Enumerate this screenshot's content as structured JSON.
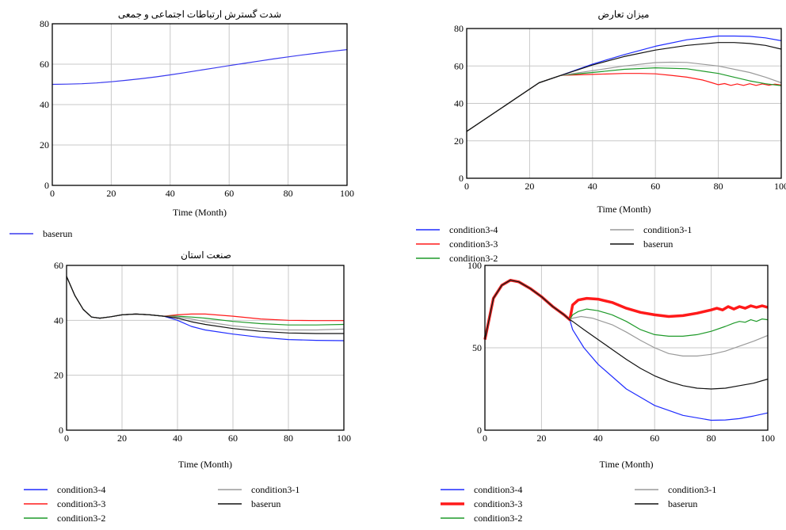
{
  "colors": {
    "condition3-4": "#1f2cff",
    "condition3-3": "#ff1a1a",
    "condition3-2": "#1f9a2a",
    "condition3-1": "#9a9a9a",
    "baserun": "#111111",
    "baserun_single": "#3a3aee",
    "grid": "#c8c8c8"
  },
  "chart_data": [
    {
      "type": "line",
      "title": "شدت گسترش ارتباطات اجتماعی و جمعی",
      "xlabel": "Time (Month)",
      "ylabel": "",
      "xlim": [
        0,
        100
      ],
      "ylim": [
        0,
        80
      ],
      "xticks": [
        "0",
        "20",
        "40",
        "60",
        "80",
        "100"
      ],
      "yticks": [
        "0",
        "20",
        "40",
        "60",
        "80"
      ],
      "grid": true,
      "legend": [
        "baserun"
      ],
      "series": [
        {
          "name": "baserun",
          "x": [
            0,
            5,
            10,
            15,
            20,
            25,
            30,
            35,
            40,
            45,
            50,
            55,
            60,
            65,
            70,
            75,
            80,
            85,
            90,
            95,
            100
          ],
          "y": [
            50,
            50.1,
            50.3,
            50.7,
            51.3,
            52.0,
            52.8,
            53.7,
            54.7,
            55.8,
            57.0,
            58.1,
            59.3,
            60.4,
            61.5,
            62.6,
            63.6,
            64.6,
            65.5,
            66.4,
            67.2
          ]
        }
      ]
    },
    {
      "type": "line",
      "title": "میزان تعارض",
      "xlabel": "Time (Month)",
      "ylabel": "",
      "xlim": [
        0,
        100
      ],
      "ylim": [
        0,
        80
      ],
      "xticks": [
        "0",
        "20",
        "40",
        "60",
        "80",
        "100"
      ],
      "yticks": [
        "0",
        "20",
        "40",
        "60",
        "80"
      ],
      "grid": true,
      "legend": [
        "condition3-4",
        "condition3-1",
        "condition3-3",
        "baserun",
        "condition3-2"
      ],
      "series": [
        {
          "name": "condition3-4",
          "x": [
            0,
            23,
            30,
            40,
            50,
            60,
            70,
            80,
            85,
            90,
            95,
            100
          ],
          "y": [
            25,
            51,
            55,
            61,
            66,
            70.5,
            74,
            76,
            76,
            75.8,
            75,
            73.5
          ]
        },
        {
          "name": "condition3-3",
          "x": [
            0,
            23,
            30,
            40,
            50,
            55,
            60,
            65,
            70,
            75,
            78,
            80,
            82,
            84,
            86,
            88,
            90,
            92,
            94,
            96,
            98,
            100
          ],
          "y": [
            25,
            51,
            55,
            55.5,
            56,
            56,
            55.8,
            55,
            54,
            52.5,
            51,
            50,
            50.6,
            49.6,
            50.4,
            49.6,
            50.5,
            49.6,
            50.4,
            49.7,
            50.3,
            49.8
          ]
        },
        {
          "name": "condition3-2",
          "x": [
            0,
            23,
            30,
            40,
            50,
            60,
            70,
            80,
            85,
            90,
            95,
            100
          ],
          "y": [
            25,
            51,
            55,
            56.5,
            58.2,
            59,
            58.5,
            56,
            54,
            52,
            50.5,
            49.5
          ]
        },
        {
          "name": "condition3-1",
          "x": [
            0,
            23,
            30,
            40,
            50,
            60,
            65,
            70,
            80,
            90,
            95,
            100
          ],
          "y": [
            25,
            51,
            55,
            57.5,
            60,
            61.8,
            62,
            61.9,
            60,
            56.5,
            54,
            51
          ]
        },
        {
          "name": "baserun",
          "x": [
            0,
            23,
            30,
            40,
            50,
            60,
            70,
            80,
            85,
            90,
            95,
            100
          ],
          "y": [
            25,
            51,
            55,
            60.5,
            65,
            68.5,
            71,
            72.5,
            72.5,
            72,
            71,
            69
          ]
        }
      ]
    },
    {
      "type": "line",
      "title": "صنعت استان",
      "xlabel": "Time (Month)",
      "ylabel": "",
      "xlim": [
        0,
        100
      ],
      "ylim": [
        0,
        60
      ],
      "xticks": [
        "0",
        "20",
        "40",
        "60",
        "80",
        "100"
      ],
      "yticks": [
        "0",
        "20",
        "40",
        "60"
      ],
      "grid": true,
      "legend": [
        "condition3-4",
        "condition3-1",
        "condition3-3",
        "baserun",
        "condition3-2"
      ],
      "series": [
        {
          "name": "condition3-4",
          "x": [
            0,
            3,
            6,
            9,
            12,
            16,
            20,
            25,
            30,
            35,
            40,
            45,
            50,
            60,
            70,
            80,
            90,
            100
          ],
          "y": [
            56,
            49,
            44,
            41.2,
            40.8,
            41.3,
            42,
            42.3,
            42,
            41.5,
            40,
            37.8,
            36.5,
            35,
            33.8,
            33,
            32.7,
            32.6
          ]
        },
        {
          "name": "condition3-3",
          "x": [
            0,
            3,
            6,
            9,
            12,
            16,
            20,
            25,
            30,
            35,
            40,
            45,
            50,
            60,
            70,
            80,
            90,
            100
          ],
          "y": [
            56,
            49,
            44,
            41.2,
            40.8,
            41.3,
            42,
            42.3,
            42,
            41.5,
            42,
            42.3,
            42.3,
            41.5,
            40.5,
            40,
            39.9,
            39.9
          ]
        },
        {
          "name": "condition3-2",
          "x": [
            0,
            3,
            6,
            9,
            12,
            16,
            20,
            25,
            30,
            35,
            40,
            45,
            50,
            60,
            70,
            80,
            90,
            100
          ],
          "y": [
            56,
            49,
            44,
            41.2,
            40.8,
            41.3,
            42,
            42.3,
            42,
            41.5,
            41.5,
            41.2,
            40.8,
            39.6,
            38.8,
            38.3,
            38.3,
            38.5
          ]
        },
        {
          "name": "condition3-1",
          "x": [
            0,
            3,
            6,
            9,
            12,
            16,
            20,
            25,
            30,
            35,
            40,
            45,
            50,
            60,
            70,
            80,
            90,
            100
          ],
          "y": [
            56,
            49,
            44,
            41.2,
            40.8,
            41.3,
            42,
            42.3,
            42,
            41.5,
            41.2,
            40.5,
            39.5,
            38,
            37,
            36.5,
            36.5,
            36.8
          ]
        },
        {
          "name": "baserun",
          "x": [
            0,
            3,
            6,
            9,
            12,
            16,
            20,
            25,
            30,
            35,
            40,
            45,
            50,
            60,
            70,
            80,
            90,
            100
          ],
          "y": [
            56,
            49,
            44,
            41.2,
            40.8,
            41.3,
            42,
            42.3,
            42,
            41.5,
            40.8,
            39.5,
            38.5,
            37,
            36,
            35.4,
            35.2,
            35.2
          ]
        }
      ]
    },
    {
      "type": "line",
      "title": "",
      "xlabel": "Time (Month)",
      "ylabel": "",
      "xlim": [
        0,
        100
      ],
      "ylim": [
        0,
        100
      ],
      "xticks": [
        "0",
        "20",
        "40",
        "60",
        "80",
        "100"
      ],
      "yticks": [
        "0",
        "50",
        "100"
      ],
      "grid": true,
      "legend": [
        "condition3-4",
        "condition3-1",
        "condition3-3",
        "baserun",
        "condition3-2"
      ],
      "series": [
        {
          "name": "condition3-4",
          "x": [
            0,
            3,
            6,
            9,
            12,
            16,
            20,
            24,
            28,
            30,
            31,
            35,
            40,
            50,
            60,
            70,
            80,
            85,
            90,
            95,
            100
          ],
          "y": [
            55,
            80,
            88,
            91,
            90,
            86,
            81,
            75,
            70,
            67,
            61,
            50,
            40,
            25,
            15,
            9,
            6,
            6.2,
            7,
            8.6,
            10.5
          ]
        },
        {
          "name": "condition3-3",
          "x": [
            0,
            3,
            6,
            9,
            12,
            16,
            20,
            24,
            28,
            30,
            31,
            33,
            36,
            40,
            45,
            50,
            55,
            60,
            65,
            70,
            75,
            80,
            82,
            84,
            86,
            88,
            90,
            92,
            94,
            96,
            98,
            100
          ],
          "y": [
            55,
            80,
            88,
            91,
            90,
            86,
            81,
            75,
            70,
            67,
            76,
            79,
            80,
            79.5,
            77.5,
            74,
            71.5,
            70,
            69,
            69.5,
            71,
            73,
            74,
            73,
            75,
            73.5,
            75,
            74,
            75.5,
            74.5,
            75.5,
            74.5
          ]
        },
        {
          "name": "condition3-2",
          "x": [
            0,
            3,
            6,
            9,
            12,
            16,
            20,
            24,
            28,
            30,
            31,
            33,
            36,
            40,
            45,
            50,
            55,
            60,
            65,
            70,
            75,
            80,
            85,
            88,
            90,
            92,
            94,
            96,
            98,
            100
          ],
          "y": [
            55,
            80,
            88,
            91,
            90,
            86,
            81,
            75,
            70,
            67,
            70,
            72,
            73.5,
            72.5,
            70,
            66,
            61,
            58,
            57,
            57,
            58,
            60,
            63,
            65,
            66,
            65.5,
            67,
            66,
            67.5,
            67
          ]
        },
        {
          "name": "condition3-1",
          "x": [
            0,
            3,
            6,
            9,
            12,
            16,
            20,
            24,
            28,
            30,
            31,
            34,
            38,
            45,
            50,
            55,
            60,
            65,
            70,
            75,
            80,
            85,
            90,
            95,
            100
          ],
          "y": [
            55,
            80,
            88,
            91,
            90,
            86,
            81,
            75,
            70,
            67,
            68,
            69,
            68,
            64,
            59.5,
            54.5,
            50,
            46.5,
            45,
            45,
            46,
            48,
            51,
            54,
            57.5
          ]
        },
        {
          "name": "baserun",
          "x": [
            0,
            3,
            6,
            9,
            12,
            16,
            20,
            24,
            28,
            30,
            31,
            35,
            40,
            45,
            50,
            55,
            60,
            65,
            70,
            75,
            80,
            85,
            90,
            95,
            100
          ],
          "y": [
            55,
            80,
            88,
            91,
            90,
            86,
            81,
            75,
            70,
            67,
            66,
            61,
            55,
            49,
            43,
            37.5,
            33,
            29.5,
            27,
            25.5,
            25,
            25.5,
            27,
            28.5,
            31
          ]
        }
      ]
    }
  ]
}
